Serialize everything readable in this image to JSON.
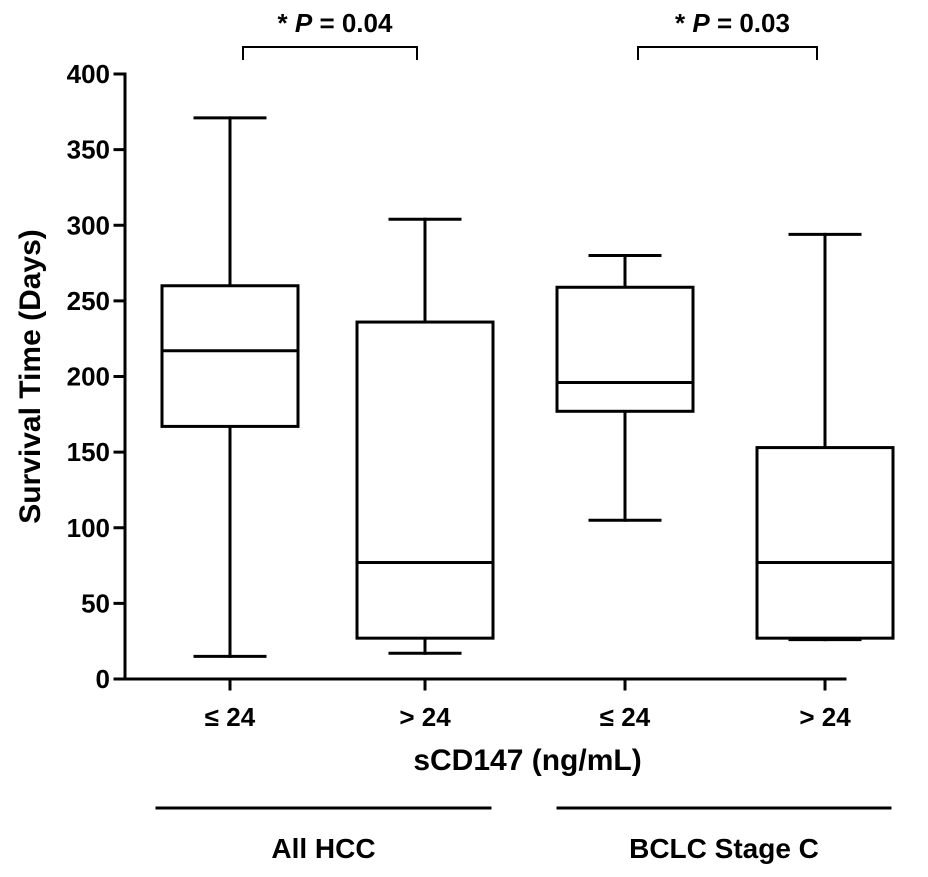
{
  "chart_data": {
    "type": "box",
    "ylabel": "Survival Time (Days)",
    "xlabel": "sCD147 (ng/mL)",
    "ylim": [
      0,
      400
    ],
    "yticks": [
      0,
      50,
      100,
      150,
      200,
      250,
      300,
      350,
      400
    ],
    "categories": [
      "≤ 24",
      "> 24",
      "≤ 24",
      "> 24"
    ],
    "boxes": [
      {
        "category": "≤ 24",
        "group": "All HCC",
        "min": 15,
        "q1": 167,
        "median": 217,
        "q3": 260,
        "max": 371
      },
      {
        "category": "> 24",
        "group": "All HCC",
        "min": 17,
        "q1": 27,
        "median": 77,
        "q3": 236,
        "max": 304
      },
      {
        "category": "≤ 24",
        "group": "BCLC Stage C",
        "min": 105,
        "q1": 177,
        "median": 196,
        "q3": 259,
        "max": 280
      },
      {
        "category": "> 24",
        "group": "BCLC Stage C",
        "min": 26,
        "q1": 27,
        "median": 77,
        "q3": 153,
        "max": 294
      }
    ],
    "groups": [
      "All HCC",
      "BCLC Stage C"
    ],
    "annotations": [
      {
        "star": "*",
        "p_label": "P",
        "p_value": "= 0.04",
        "between": [
          0,
          1
        ]
      },
      {
        "star": "*",
        "p_label": "P",
        "p_value": "= 0.03",
        "between": [
          2,
          3
        ]
      }
    ],
    "grid": false,
    "legend": "none"
  }
}
